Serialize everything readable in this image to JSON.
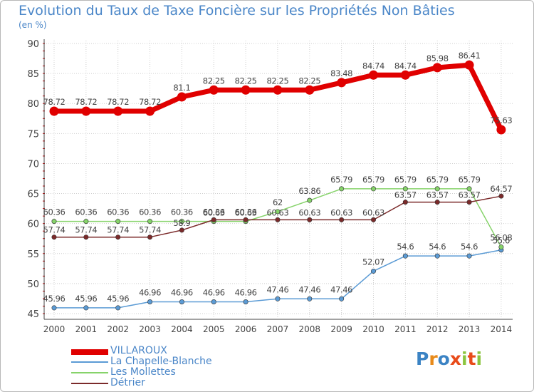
{
  "title": "Evolution du Taux de Taxe Foncière sur les Propriétés Non Bâties",
  "subtitle": "(en %)",
  "logo_text": "Proxiti",
  "colors": {
    "title": "#4a86c8",
    "grid": "#cfcfcf",
    "axis": "#444444",
    "tick": "#cc0000",
    "label": "#444444"
  },
  "chart_data": {
    "type": "line",
    "title": "Evolution du Taux de Taxe Foncière sur les Propriétés Non Bâties",
    "ylabel": "(en %)",
    "xlabel": "",
    "ylim": [
      45,
      90
    ],
    "yticks": [
      45,
      50,
      55,
      60,
      65,
      70,
      75,
      80,
      85,
      90
    ],
    "grid": true,
    "legend_position": "bottom-left",
    "x": [
      "2000",
      "2001",
      "2002",
      "2003",
      "2004",
      "2005",
      "2006",
      "2007",
      "2008",
      "2009",
      "2010",
      "2011",
      "2012",
      "2013",
      "2014"
    ],
    "series": [
      {
        "name": "VILLAROUX",
        "color": "#e00000",
        "values": [
          78.72,
          78.72,
          78.72,
          78.72,
          81.1,
          82.25,
          82.25,
          82.25,
          82.25,
          83.48,
          84.74,
          84.74,
          85.98,
          86.41,
          75.63
        ],
        "labels": [
          "78.72",
          "78.72",
          "78.72",
          "78.72",
          "81.1",
          "82.25",
          "82.25",
          "82.25",
          "82.25",
          "83.48",
          "84.74",
          "84.74",
          "85.98",
          "86.41",
          "75.63"
        ]
      },
      {
        "name": "La Chapelle-Blanche",
        "color": "#5b9bd5",
        "values": [
          45.96,
          45.96,
          45.96,
          46.96,
          46.96,
          46.96,
          46.96,
          47.46,
          47.46,
          47.46,
          52.07,
          54.6,
          54.6,
          54.6,
          55.6
        ],
        "labels": [
          "45.96",
          "45.96",
          "45.96",
          "46.96",
          "46.96",
          "46.96",
          "46.96",
          "47.46",
          "47.46",
          "47.46",
          "52.07",
          "54.6",
          "54.6",
          "54.6",
          "55.6"
        ]
      },
      {
        "name": "Les Mollettes",
        "color": "#86d36a",
        "values": [
          60.36,
          60.36,
          60.36,
          60.36,
          60.36,
          60.36,
          60.36,
          62,
          63.86,
          65.79,
          65.79,
          65.79,
          65.79,
          65.79,
          56.08
        ],
        "labels": [
          "60.36",
          "60.36",
          "60.36",
          "60.36",
          "60.36",
          "60.36",
          "60.36",
          "62",
          "63.86",
          "65.79",
          "65.79",
          "65.79",
          "65.79",
          "65.79",
          "56.08"
        ]
      },
      {
        "name": "Détrier",
        "color": "#7b2a2a",
        "values": [
          57.74,
          57.74,
          57.74,
          57.74,
          58.9,
          60.63,
          60.63,
          60.63,
          60.63,
          60.63,
          60.63,
          63.57,
          63.57,
          63.57,
          64.57
        ],
        "labels": [
          "57.74",
          "57.74",
          "57.74",
          "57.74",
          "58.9",
          "60.63",
          "60.63",
          "60.63",
          "60.63",
          "60.63",
          "60.63",
          "63.57",
          "63.57",
          "63.57",
          "64.57"
        ]
      }
    ]
  }
}
